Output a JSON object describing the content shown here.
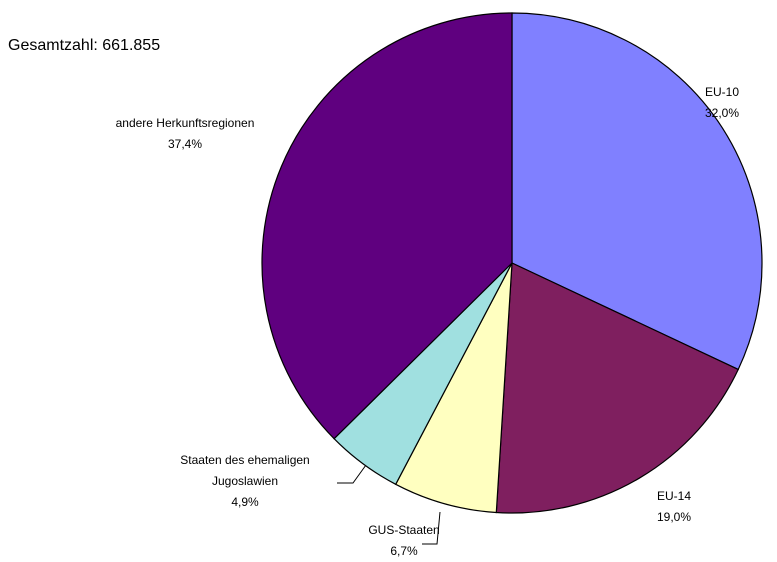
{
  "chart_data": {
    "type": "pie",
    "title": "Gesamtzahl: 661.855",
    "categories": [
      "EU-10",
      "EU-14",
      "GUS-Staaten",
      "Staaten des ehemaligen Jugoslawien",
      "andere Herkunftsregionen"
    ],
    "values": [
      32.0,
      19.0,
      6.7,
      4.9,
      37.4
    ],
    "value_labels": [
      "32,0%",
      "19,0%",
      "6,7%",
      "4,9%",
      "37,4%"
    ],
    "colors": [
      "#8080ff",
      "#7f1f5f",
      "#ffffc0",
      "#a0e0e0",
      "#5f007f"
    ]
  }
}
